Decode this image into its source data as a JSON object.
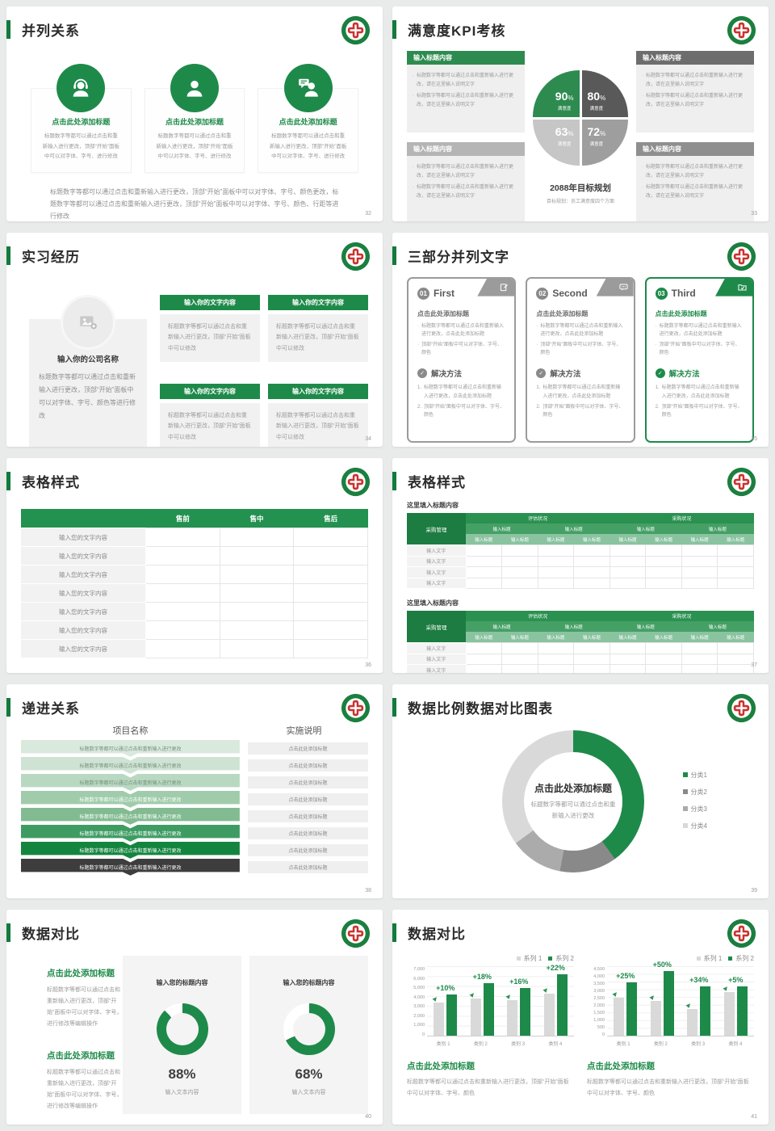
{
  "colors": {
    "green": "#1e8a4a",
    "green_dark": "#127a3d",
    "table_green": "#239150",
    "gray_series": "#d9d9d9",
    "dark_gray": "#3d3d3d",
    "red_logo": "#c9332f"
  },
  "slides": {
    "s32": {
      "title": "并列关系",
      "page": "32",
      "items": [
        {
          "icon": "headset-agent-icon",
          "title": "点击此处添加标题",
          "body": "标题数字等都可以通过点击和重新输入进行更改，顶部“开始”面板中可以对字体、字号、进行修改"
        },
        {
          "icon": "person-icon",
          "title": "点击此处添加标题",
          "body": "标题数字等都可以通过点击和重新输入进行更改，顶部“开始”面板中可以对字体、字号、进行修改"
        },
        {
          "icon": "person-chat-icon",
          "title": "点击此处添加标题",
          "body": "标题数字等都可以通过点击和重新输入进行更改，顶部“开始”面板中可以对字体、字号、进行修改"
        }
      ],
      "footer": "标题数字等都可以通过点击和重新输入进行更改，顶部“开始”面板中可以对字体、字号、颜色更改，标题数字等都可以通过点击和重新输入进行更改，顶部“开始”面板中可以对字体、字号、颜色、行距等进行修改"
    },
    "s33": {
      "title": "满意度KPI考核",
      "page": "33",
      "box_header": "输入标题内容",
      "bullet": "标题数字等都可以通过点击和重新输入进行更改，请在这里输入说明文字",
      "boxes": [
        {
          "header_bg": "#2e8b50"
        },
        {
          "header_bg": "#6d6d6d"
        },
        {
          "header_bg": "#b5b5b5"
        },
        {
          "header_bg": "#8f8f8f"
        }
      ],
      "pct_sym": "%",
      "chart_data": {
        "type": "pie",
        "labels": [
          "满意度",
          "满意度",
          "满意度",
          "满意度"
        ],
        "values": [
          90,
          80,
          63,
          72
        ],
        "colors": [
          "#2e8b50",
          "#595959",
          "#c6c6c6",
          "#9e9e9e"
        ],
        "title": "2088年目标规划"
      },
      "quadrants": [
        {
          "pct": "90",
          "label": "满意度"
        },
        {
          "pct": "80",
          "label": "满意度"
        },
        {
          "pct": "63",
          "label": "满意度"
        },
        {
          "pct": "72",
          "label": "满意度"
        }
      ],
      "caption": "2088年目标规划",
      "caption_sub": "目标规划：员工满意度四个方面"
    },
    "s34": {
      "title": "实习经历",
      "page": "34",
      "company_name": "输入你的公司名称",
      "company_body": "标题数字等都可以通过点击和重新输入进行更改，顶部“开始”面板中可以对字体、字号、颜色等进行修改",
      "box_header": "输入你的文字内容",
      "box_body": "标题数字等都可以通过点击和重新输入进行更改，顶部“开始”面板中可以修改"
    },
    "s35": {
      "title": "三部分并列文字",
      "page": "35",
      "heading": "点击此处添加标题",
      "bullet1": "标题数字等都可以通过点击和重新输入进行更改，点击此处添加标题",
      "bullet2": "顶部“开始”面板中可以对字体、字号、颜色",
      "solution": "解决方法",
      "check": "✓",
      "num1": "1.",
      "num2": "2.",
      "cards": [
        {
          "num": "01",
          "name": "First",
          "tab_icon": "clipboard-edit-icon",
          "theme": "gray"
        },
        {
          "num": "02",
          "name": "Second",
          "tab_icon": "chat-bubble-icon",
          "theme": "gray"
        },
        {
          "num": "03",
          "name": "Third",
          "tab_icon": "folder-check-icon",
          "theme": "green"
        }
      ]
    },
    "s36": {
      "title": "表格样式",
      "page": "36",
      "headers": [
        "",
        "售前",
        "售中",
        "售后"
      ],
      "row_label": "输入您的文字内容"
    },
    "s37": {
      "title": "表格样式",
      "page": "37",
      "caption": "这里填入标题内容",
      "corner": "采购管理",
      "group1": "评估状况",
      "group2": "采购状况",
      "sub_label": "输入标题",
      "cell_label": "输入文字"
    },
    "s38": {
      "title": "递进关系",
      "page": "38",
      "col1": "项目名称",
      "col2": "实施说明",
      "left_text": "标题数字等都可以通过点击和重新输入进行更改",
      "right_text": "点击此处添加标题",
      "colors": [
        "#d9e9dd",
        "#cfe3d4",
        "#b9d8c1",
        "#a0ccab",
        "#82bb91",
        "#3e9c63",
        "#14853f",
        "#3d3d3d"
      ]
    },
    "s39": {
      "title": "数据比例数据对比图表",
      "page": "39",
      "center_title": "点击此处添加标题",
      "center_sub": "标题数字等都可以通过点击和重新输入进行更改",
      "chart_data": {
        "type": "pie",
        "labels": [
          "分类1",
          "分类2",
          "分类3",
          "分类4"
        ],
        "values": [
          40,
          13,
          12,
          35
        ],
        "colors": [
          "#1e8a4a",
          "#898989",
          "#ababab",
          "#d9d9d9"
        ],
        "legend_position": "right"
      }
    },
    "s40": {
      "title": "数据对比",
      "page": "40",
      "block_title": "点击此处添加标题",
      "block_body": "标题数字等都可以通过点击和重新输入进行更改，顶部“开始”面板中可以对字体、字号，进行修改等编辑操作",
      "chart_data": [
        {
          "type": "pie",
          "header": "输入您的标题内容",
          "pct": 88,
          "pct_text": "88%",
          "caption": "输入文本内容",
          "color": "#1e8a4a"
        },
        {
          "type": "pie",
          "header": "输入您的标题内容",
          "pct": 68,
          "pct_text": "68%",
          "caption": "输入文本内容",
          "color": "#1e8a4a"
        }
      ]
    },
    "s41": {
      "title": "数据对比",
      "page": "41",
      "block_title": "点击此处添加标题",
      "block_body": "标题数字等都可以通过点击和重新输入进行更改，顶部“开始”面板中可以对字体、字号、颜色",
      "chart_data": [
        {
          "type": "bar",
          "ymax": 7000,
          "yticks": [
            "7,000",
            "6,000",
            "5,000",
            "4,000",
            "3,000",
            "2,000",
            "1,000",
            "0"
          ],
          "categories": [
            "类别 1",
            "类别 2",
            "类别 3",
            "类别 4"
          ],
          "series": [
            {
              "name": "系列 1",
              "color": "#d9d9d9",
              "values": [
                3400,
                3800,
                3650,
                4300
              ]
            },
            {
              "name": "系列 2",
              "color": "#1e8a4a",
              "values": [
                4200,
                5300,
                4800,
                6200
              ]
            }
          ],
          "deltas": [
            "+10%",
            "+18%",
            "+16%",
            "+22%"
          ]
        },
        {
          "type": "bar",
          "ymax": 4500,
          "yticks": [
            "4,500",
            "4,000",
            "3,500",
            "3,000",
            "2,500",
            "2,000",
            "1,500",
            "1,000",
            "500",
            "0"
          ],
          "categories": [
            "类别 1",
            "类别 2",
            "类别 3",
            "类别 4"
          ],
          "series": [
            {
              "name": "系列 1",
              "color": "#d9d9d9",
              "values": [
                2500,
                2250,
                1750,
                2850
              ]
            },
            {
              "name": "系列 2",
              "color": "#1e8a4a",
              "values": [
                3500,
                4200,
                3200,
                3200
              ]
            }
          ],
          "deltas": [
            "+25%",
            "+50%",
            "+34%",
            "+5%"
          ]
        }
      ]
    }
  }
}
